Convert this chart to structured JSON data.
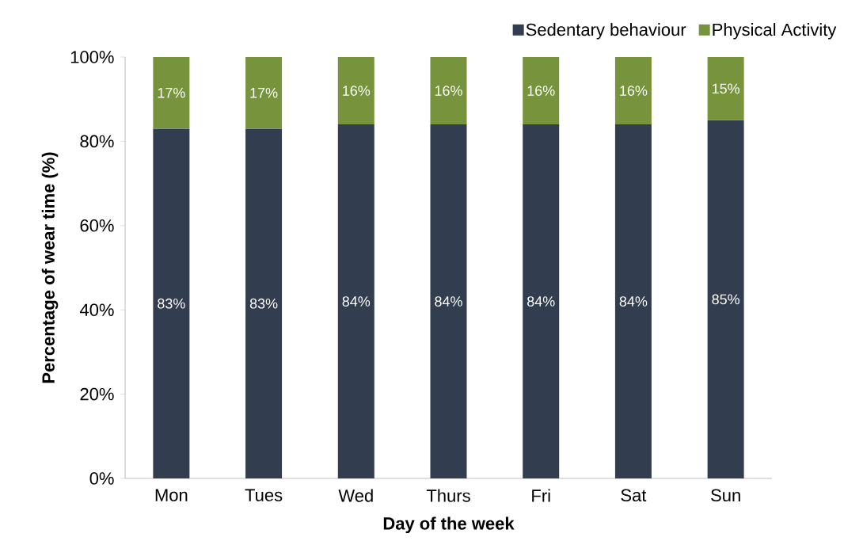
{
  "chart_data": {
    "type": "bar",
    "stacked": true,
    "categories": [
      "Mon",
      "Tues",
      "Wed",
      "Thurs",
      "Fri",
      "Sat",
      "Sun"
    ],
    "series": [
      {
        "name": "Sedentary behaviour",
        "color": "#323d4f",
        "values": [
          83,
          83,
          84,
          84,
          84,
          84,
          85
        ],
        "value_labels": [
          "83%",
          "83%",
          "84%",
          "84%",
          "84%",
          "84%",
          "85%"
        ]
      },
      {
        "name": "Physical Activity",
        "color": "#77933c",
        "values": [
          17,
          17,
          16,
          16,
          16,
          16,
          15
        ],
        "value_labels": [
          "17%",
          "17%",
          "16%",
          "16%",
          "16%",
          "16%",
          "15%"
        ]
      }
    ],
    "ylim": [
      0,
      100
    ],
    "yticks": [
      {
        "value": 0,
        "label": "0%"
      },
      {
        "value": 20,
        "label": "20%"
      },
      {
        "value": 40,
        "label": "40%"
      },
      {
        "value": 60,
        "label": "60%"
      },
      {
        "value": 80,
        "label": "80%"
      },
      {
        "value": 100,
        "label": "100%"
      }
    ],
    "xlabel": "Day of the week",
    "ylabel": "Percentage of wear time (%)",
    "legend": "top right"
  }
}
